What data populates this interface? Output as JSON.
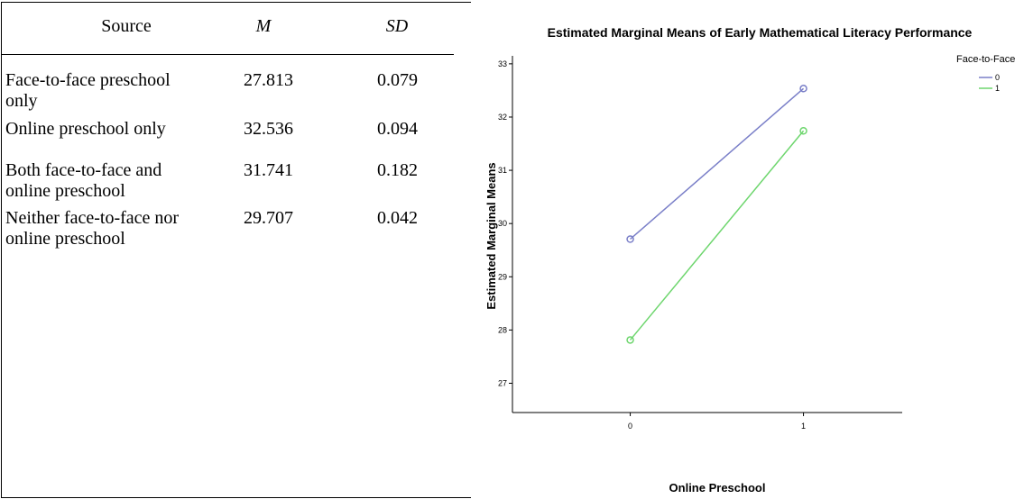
{
  "table": {
    "header": [
      "Source",
      "M",
      "SD"
    ],
    "rows": [
      [
        "Face-to-face preschool only",
        "27.813",
        "0.079"
      ],
      [
        "Online preschool only",
        "32.536",
        "0.094"
      ],
      [
        "Both face-to-face and online preschool",
        "31.741",
        "0.182"
      ],
      [
        "Neither face-to-face nor online preschool",
        "29.707",
        "0.042"
      ]
    ]
  },
  "chart_data": {
    "type": "line",
    "title": "Estimated Marginal Means of Early Mathematical Literacy Performance",
    "x_label": "Online Preschool",
    "y_label": "Estimated Marginal Means",
    "legend_title": "Face-to-Face",
    "x": [
      0,
      1
    ],
    "xlim": [
      -0.68,
      1.57
    ],
    "xticks": [
      0,
      1
    ],
    "ylim": [
      26.45,
      33.15
    ],
    "yticks": [
      27,
      28,
      29,
      30,
      31,
      32,
      33
    ],
    "series": [
      {
        "name": "0",
        "color": "#7a7fc8",
        "values": [
          29.707,
          32.536
        ]
      },
      {
        "name": "1",
        "color": "#6ed66e",
        "values": [
          27.813,
          31.741
        ]
      }
    ]
  }
}
